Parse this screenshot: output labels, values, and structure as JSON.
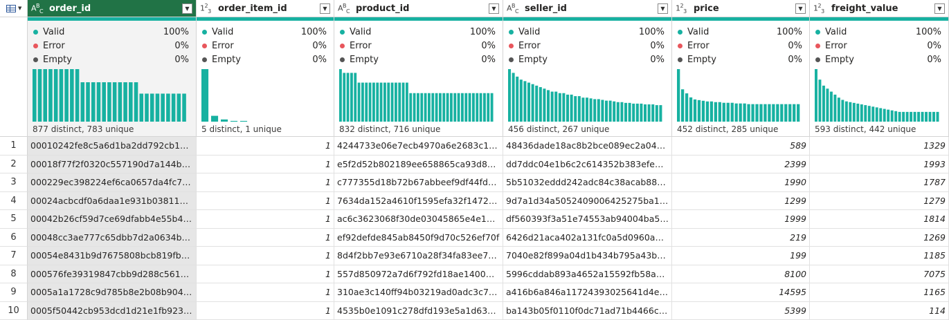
{
  "quality_labels": {
    "valid": "Valid",
    "error": "Error",
    "empty": "Empty"
  },
  "colors": {
    "valid": "#17b1a1",
    "error": "#e8565c",
    "empty": "#555555",
    "selected_header": "#217346"
  },
  "columns": [
    {
      "name": "order_id",
      "type": "text",
      "valid": "100%",
      "error": "0%",
      "empty": "0%",
      "summary": "877 distinct, 783 unique",
      "selected": true,
      "numeric": false,
      "distribution": [
        60,
        60,
        60,
        60,
        60,
        60,
        60,
        60,
        60,
        45,
        45,
        45,
        45,
        45,
        45,
        45,
        45,
        45,
        45,
        45,
        32,
        32,
        32,
        32,
        32,
        32,
        32,
        32,
        32
      ]
    },
    {
      "name": "order_item_id",
      "type": "number",
      "valid": "100%",
      "error": "0%",
      "empty": "0%",
      "summary": "5 distinct, 1 unique",
      "selected": false,
      "numeric": true,
      "distribution": [
        72,
        8,
        3,
        1,
        1
      ]
    },
    {
      "name": "product_id",
      "type": "text",
      "valid": "100%",
      "error": "0%",
      "empty": "0%",
      "summary": "832 distinct, 716 unique",
      "selected": false,
      "numeric": false,
      "distribution": [
        70,
        65,
        65,
        65,
        65,
        52,
        52,
        52,
        52,
        52,
        52,
        52,
        52,
        52,
        52,
        52,
        52,
        52,
        52,
        38,
        38,
        38,
        38,
        38,
        38,
        38,
        38,
        38,
        38,
        38,
        38,
        38,
        38,
        38,
        38,
        38,
        38,
        38,
        38,
        38,
        38,
        38
      ]
    },
    {
      "name": "seller_id",
      "type": "text",
      "valid": "100%",
      "error": "0%",
      "empty": "0%",
      "summary": "456 distinct, 267 unique",
      "selected": false,
      "numeric": false,
      "distribution": [
        70,
        65,
        60,
        56,
        54,
        52,
        50,
        48,
        46,
        44,
        42,
        40,
        40,
        38,
        38,
        36,
        36,
        34,
        34,
        32,
        32,
        31,
        30,
        30,
        29,
        28,
        28,
        27,
        26,
        26,
        25,
        25,
        24,
        24,
        24,
        23,
        23,
        23,
        22,
        22
      ]
    },
    {
      "name": "price",
      "type": "number",
      "valid": "100%",
      "error": "0%",
      "empty": "0%",
      "summary": "452 distinct, 285 unique",
      "selected": false,
      "numeric": true,
      "distribution": [
        78,
        48,
        42,
        36,
        33,
        32,
        31,
        30,
        30,
        29,
        29,
        28,
        28,
        28,
        27,
        27,
        27,
        26,
        26,
        26,
        26,
        26,
        26,
        26,
        26,
        26,
        26,
        26,
        26,
        26
      ]
    },
    {
      "name": "freight_value",
      "type": "number",
      "valid": "100%",
      "error": "0%",
      "empty": "0%",
      "summary": "593 distinct, 442 unique",
      "selected": false,
      "numeric": true,
      "distribution": [
        70,
        56,
        48,
        44,
        40,
        36,
        32,
        29,
        27,
        26,
        25,
        24,
        23,
        22,
        21,
        20,
        19,
        18,
        17,
        16,
        15,
        14,
        13,
        13,
        13,
        13,
        13,
        13,
        13,
        13,
        13,
        13,
        13
      ]
    }
  ],
  "rows": [
    [
      "1",
      "00010242fe8c5a6d1ba2dd792cb162...",
      "1",
      "4244733e06e7ecb4970a6e2683c13...",
      "48436dade18ac8b2bce089ec2a0412...",
      "589",
      "1329"
    ],
    [
      "2",
      "00018f77f2f0320c557190d7a144bdd3",
      "1",
      "e5f2d52b802189ee658865ca93d83a...",
      "dd7ddc04e1b6c2c614352b383efe2d...",
      "2399",
      "1993"
    ],
    [
      "3",
      "000229ec398224ef6ca0657da4fc703e",
      "1",
      "c777355d18b72b67abbeef9df44fd0fd",
      "5b51032eddd242adc84c38acab88f2...",
      "1990",
      "1787"
    ],
    [
      "4",
      "00024acbcdf0a6daa1e931b038114c...",
      "1",
      "7634da152a4610f1595efa32f14722fc",
      "9d7a1d34a5052409006425275ba1c...",
      "1299",
      "1279"
    ],
    [
      "5",
      "00042b26cf59d7ce69dfabb4e55b4fd9",
      "1",
      "ac6c3623068f30de03045865e4e100...",
      "df560393f3a51e74553ab94004ba5c...",
      "1999",
      "1814"
    ],
    [
      "6",
      "00048cc3ae777c65dbb7d2a0634bc1...",
      "1",
      "ef92defde845ab8450f9d70c526ef70f",
      "6426d21aca402a131fc0a5d0960a3c90",
      "219",
      "1269"
    ],
    [
      "7",
      "00054e8431b9d7675808bcb819fb4a...",
      "1",
      "8d4f2bb7e93e6710a28f34fa83ee7d28",
      "7040e82f899a04d1b434b795a43b4...",
      "199",
      "1185"
    ],
    [
      "8",
      "000576fe39319847cbb9d288c5617fa6",
      "1",
      "557d850972a7d6f792fd18ae1400d9...",
      "5996cddab893a4652a15592fb58ab8...",
      "8100",
      "7075"
    ],
    [
      "9",
      "0005a1a1728c9d785b8e2b08b9045...",
      "1",
      "310ae3c140ff94b03219ad0adc3c778f",
      "a416b6a846a11724393025641d4ed...",
      "14595",
      "1165"
    ],
    [
      "10",
      "0005f50442cb953dcd1d21e1fb9234...",
      "1",
      "4535b0e1091c278dfd193e5a1d63b3...",
      "ba143b05f0110f0dc71ad71b4466ce...",
      "5399",
      "114"
    ]
  ]
}
